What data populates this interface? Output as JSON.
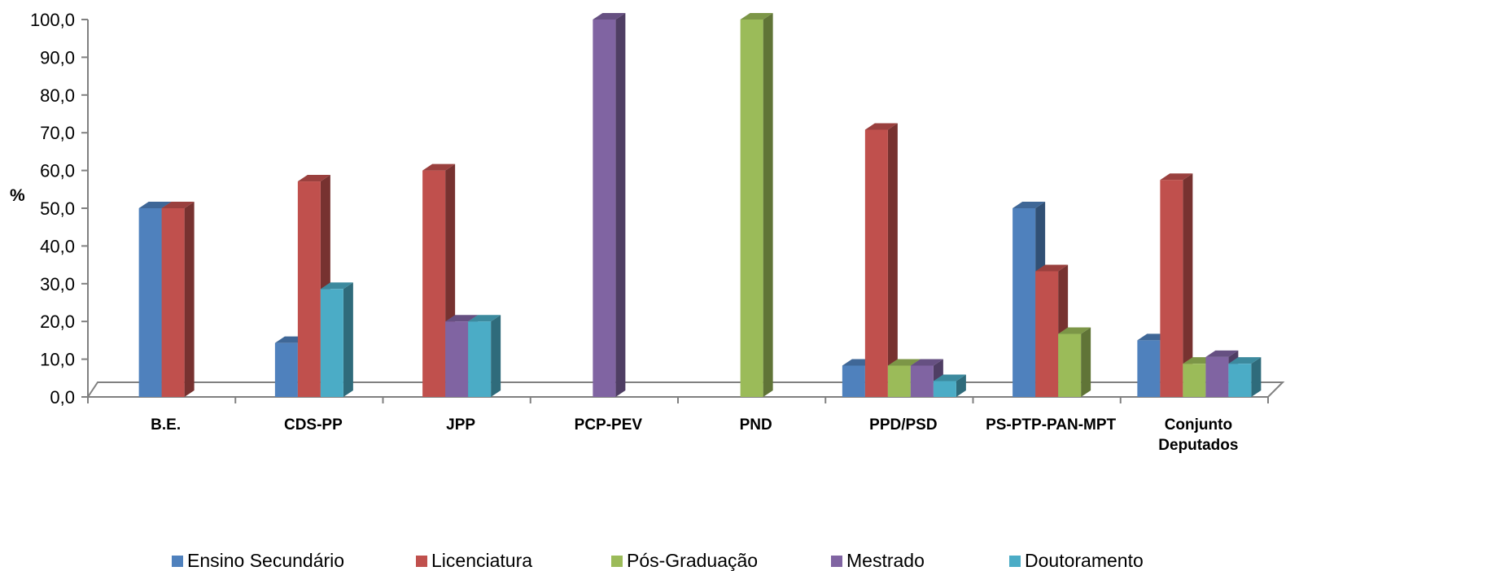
{
  "chart_data": {
    "type": "bar",
    "ylabel": "%",
    "ylim": [
      0,
      100
    ],
    "ytick_step": 10,
    "ytick_labels": [
      "0,0",
      "10,0",
      "20,0",
      "30,0",
      "40,0",
      "50,0",
      "60,0",
      "70,0",
      "80,0",
      "90,0",
      "100,0"
    ],
    "categories": [
      [
        "B.E."
      ],
      [
        "CDS-PP"
      ],
      [
        "JPP"
      ],
      [
        "PCP-PEV"
      ],
      [
        "PND"
      ],
      [
        "PPD/PSD"
      ],
      [
        "PS-PTP-PAN-MPT"
      ],
      [
        "Conjunto",
        "Deputados"
      ]
    ],
    "series": [
      {
        "name": "Ensino Secundário",
        "color": "#4F81BD",
        "values": [
          50.0,
          14.3,
          null,
          null,
          null,
          8.3,
          50.0,
          15.0
        ]
      },
      {
        "name": "Licenciatura",
        "color": "#C0504D",
        "values": [
          50.0,
          57.1,
          60.0,
          null,
          null,
          70.8,
          33.3,
          57.5
        ]
      },
      {
        "name": "Pós-Graduação",
        "color": "#9BBB59",
        "values": [
          null,
          null,
          null,
          null,
          100.0,
          8.3,
          16.7,
          8.8
        ]
      },
      {
        "name": "Mestrado",
        "color": "#8064A2",
        "values": [
          null,
          null,
          20.0,
          100.0,
          null,
          8.3,
          null,
          10.6
        ]
      },
      {
        "name": "Doutoramento",
        "color": "#4BACC6",
        "values": [
          null,
          28.6,
          20.0,
          null,
          null,
          4.2,
          null,
          8.8
        ]
      }
    ],
    "legend_position": "bottom",
    "grid": false
  }
}
